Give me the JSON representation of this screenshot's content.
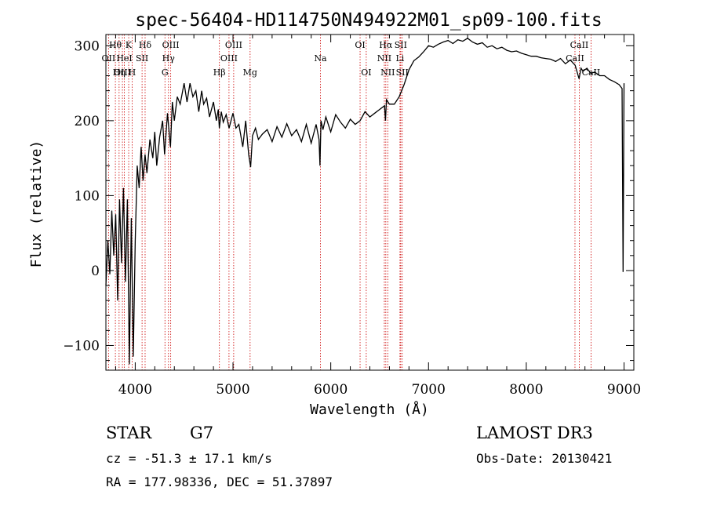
{
  "chart_data": {
    "type": "line",
    "title": "spec-56404-HD114750N494922M01_sp09-100.fits",
    "xlabel": "Wavelength (Å)",
    "ylabel": "Flux (relative)",
    "xlim": [
      3700,
      9100
    ],
    "ylim": [
      -133,
      315
    ],
    "x_ticks": [
      4000,
      5000,
      6000,
      7000,
      8000,
      9000
    ],
    "y_ticks": [
      -100,
      0,
      100,
      200,
      300
    ],
    "grid": false,
    "legend": "none",
    "series": [
      {
        "color": "#000000",
        "x": [
          3700,
          3720,
          3740,
          3760,
          3780,
          3800,
          3820,
          3840,
          3860,
          3880,
          3900,
          3920,
          3940,
          3960,
          3980,
          4000,
          4020,
          4040,
          4060,
          4080,
          4100,
          4120,
          4150,
          4180,
          4200,
          4220,
          4250,
          4280,
          4300,
          4330,
          4360,
          4380,
          4400,
          4430,
          4460,
          4500,
          4530,
          4560,
          4590,
          4620,
          4650,
          4680,
          4700,
          4730,
          4760,
          4800,
          4830,
          4850,
          4860,
          4880,
          4900,
          4930,
          4960,
          5000,
          5030,
          5060,
          5100,
          5130,
          5160,
          5180,
          5200,
          5230,
          5260,
          5300,
          5350,
          5400,
          5450,
          5500,
          5550,
          5600,
          5650,
          5700,
          5750,
          5800,
          5850,
          5880,
          5890,
          5900,
          5920,
          5950,
          6000,
          6050,
          6100,
          6150,
          6200,
          6250,
          6300,
          6350,
          6400,
          6450,
          6500,
          6550,
          6560,
          6570,
          6600,
          6650,
          6700,
          6750,
          6800,
          6850,
          6900,
          6950,
          7000,
          7050,
          7100,
          7150,
          7200,
          7250,
          7300,
          7350,
          7400,
          7450,
          7500,
          7550,
          7600,
          7650,
          7700,
          7750,
          7800,
          7850,
          7900,
          7950,
          8000,
          8050,
          8100,
          8150,
          8200,
          8250,
          8300,
          8350,
          8400,
          8450,
          8500,
          8540,
          8560,
          8580,
          8620,
          8660,
          8700,
          8750,
          8800,
          8850,
          8900,
          8950,
          8980,
          8990,
          9000
        ],
        "values": [
          -20,
          40,
          -5,
          80,
          20,
          75,
          -40,
          95,
          10,
          110,
          -15,
          95,
          -125,
          70,
          -115,
          40,
          140,
          110,
          165,
          120,
          155,
          130,
          175,
          150,
          185,
          140,
          178,
          200,
          155,
          210,
          165,
          225,
          200,
          232,
          222,
          250,
          225,
          250,
          232,
          240,
          212,
          240,
          222,
          230,
          205,
          225,
          200,
          215,
          190,
          212,
          198,
          208,
          190,
          210,
          190,
          195,
          165,
          200,
          155,
          138,
          180,
          190,
          175,
          182,
          188,
          172,
          192,
          178,
          196,
          180,
          188,
          172,
          195,
          170,
          195,
          175,
          140,
          200,
          188,
          205,
          185,
          208,
          198,
          190,
          202,
          195,
          200,
          212,
          205,
          210,
          215,
          220,
          200,
          228,
          222,
          222,
          232,
          248,
          268,
          280,
          285,
          292,
          300,
          298,
          302,
          305,
          307,
          303,
          308,
          306,
          310,
          305,
          302,
          304,
          298,
          300,
          296,
          298,
          294,
          292,
          293,
          290,
          288,
          286,
          286,
          284,
          283,
          282,
          279,
          283,
          276,
          281,
          274,
          256,
          270,
          266,
          270,
          263,
          265,
          260,
          260,
          255,
          252,
          248,
          243,
          -2,
          250
        ]
      }
    ],
    "annotations": [
      {
        "label": "Hθ",
        "x": 3797,
        "row": 1
      },
      {
        "label": "OII",
        "x": 3727,
        "row": 2
      },
      {
        "label": "OIII",
        "x": 3869,
        "row": 3
      },
      {
        "label": "K",
        "x": 3933,
        "row": 1
      },
      {
        "label": "HeI",
        "x": 3889,
        "row": 2
      },
      {
        "label": "Hη",
        "x": 3835,
        "row": 3
      },
      {
        "label": "Hδ",
        "x": 4101,
        "row": 1
      },
      {
        "label": "SII",
        "x": 4070,
        "row": 2
      },
      {
        "label": "H",
        "x": 3968,
        "row": 3
      },
      {
        "label": "OIII",
        "x": 4363,
        "row": 1
      },
      {
        "label": "Hγ",
        "x": 4340,
        "row": 2
      },
      {
        "label": "G",
        "x": 4304,
        "row": 3
      },
      {
        "label": "OIII",
        "x": 5007,
        "row": 1
      },
      {
        "label": "OIII",
        "x": 4959,
        "row": 2
      },
      {
        "label": "Hβ",
        "x": 4861,
        "row": 3
      },
      {
        "label": "Mg",
        "x": 5175,
        "row": 3
      },
      {
        "label": "Na",
        "x": 5894,
        "row": 2
      },
      {
        "label": "OI",
        "x": 6300,
        "row": 1
      },
      {
        "label": "OI",
        "x": 6363,
        "row": 3
      },
      {
        "label": "Hα",
        "x": 6563,
        "row": 1
      },
      {
        "label": "SII",
        "x": 6716,
        "row": 1
      },
      {
        "label": "NII",
        "x": 6548,
        "row": 2
      },
      {
        "label": "Li",
        "x": 6708,
        "row": 2
      },
      {
        "label": "NII",
        "x": 6583,
        "row": 3
      },
      {
        "label": "SII",
        "x": 6731,
        "row": 3
      },
      {
        "label": "CaII",
        "x": 8542,
        "row": 1
      },
      {
        "label": "CaII",
        "x": 8498,
        "row": 2
      },
      {
        "label": "CaII",
        "x": 8662,
        "row": 3
      }
    ],
    "line_markers": [
      3727,
      3797,
      3835,
      3869,
      3889,
      3933,
      3968,
      4070,
      4101,
      4304,
      4340,
      4363,
      4861,
      4959,
      5007,
      5175,
      5894,
      6300,
      6363,
      6548,
      6563,
      6583,
      6708,
      6716,
      6731,
      8498,
      8542,
      8662
    ],
    "marker_color": "#cc0000"
  },
  "info": {
    "object_class": "STAR",
    "subclass": "G7",
    "survey": "LAMOST DR3",
    "redshift": "cz = -51.3 ± 17.1 km/s",
    "obs_date": "Obs-Date: 20130421",
    "coords": "RA = 177.98336, DEC =  51.37897"
  }
}
